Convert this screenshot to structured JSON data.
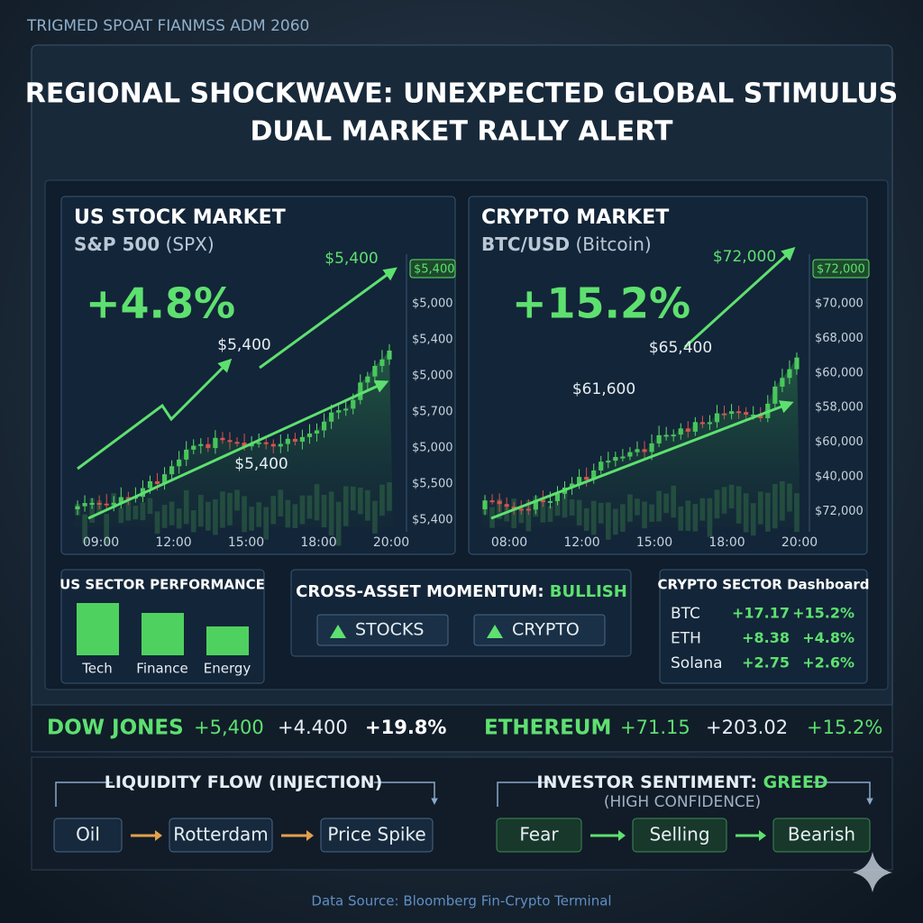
{
  "header": {
    "caption": "TRIGMED SPOAT FIANMSS ADM 2060",
    "title_lines": [
      "REGIONAL SHOCKWAVE: UNEXPECTED GLOBAL STIMULUS",
      "DUAL MARKET RALLY ALERT"
    ]
  },
  "panels": [
    {
      "title": "US STOCK MARKET",
      "subtitle_bold": "S&P 500",
      "subtitle": "(SPX)",
      "change": "+4.8%",
      "annotations": [
        "$5,400",
        "$5,400",
        "$5,400"
      ],
      "price_badge": "$5,400",
      "y_labels": [
        "$5,000",
        "$5,400",
        "$5,000",
        "$5,700",
        "$5,000",
        "$5,500",
        "$5,400"
      ],
      "x_labels": [
        "09:00",
        "12:00",
        "15:00",
        "18:00",
        "20:00"
      ]
    },
    {
      "title": "CRYPTO MARKET",
      "subtitle_bold": "BTC/USD",
      "subtitle": "(Bitcoin)",
      "change": "+15.2%",
      "annotations": [
        "$72,000",
        "$65,400",
        "$61,600"
      ],
      "price_badge": "$72,000",
      "y_labels": [
        "$70,000",
        "$68,000",
        "$60,000",
        "$58,000",
        "$60,000",
        "$40,000",
        "$72,000"
      ],
      "x_labels": [
        "08:00",
        "12:00",
        "15:00",
        "18:00",
        "20:00"
      ]
    }
  ],
  "us_sector": {
    "title": "US SECTOR PERFORMANCE",
    "categories": [
      "Tech",
      "Finance",
      "Energy"
    ],
    "values": [
      58,
      47,
      32
    ]
  },
  "momentum": {
    "title": "CROSS-ASSET MOMENTUM:",
    "status": "BULLISH",
    "buttons": [
      "STOCKS",
      "CRYPTO"
    ]
  },
  "crypto_sector": {
    "title": "CRYPTO SECTOR Dashboard",
    "rows": [
      [
        "BTC",
        "+17.17",
        "+15.2%"
      ],
      [
        "ETH",
        "+8.38",
        "+4.8%"
      ],
      [
        "Solana",
        "+2.75",
        "+2.6%"
      ]
    ]
  },
  "ticker": [
    {
      "name": "DOW JONES",
      "items": [
        "+5,400",
        "+4.400",
        "+19.8%"
      ]
    },
    {
      "name": "ETHEREUM",
      "items": [
        "+71.15",
        "+203.02",
        "+15.2%"
      ]
    }
  ],
  "flows": [
    {
      "title": "LIQUIDITY FLOW (INJECTION)",
      "steps": [
        "Oil",
        "Rotterdam",
        "Price Spike"
      ]
    },
    {
      "title": "INVESTOR SENTIMENT:",
      "status": "GREED",
      "subtitle": "(HIGH CONFIDENCE)",
      "steps": [
        "Fear",
        "Selling",
        "Bearish"
      ]
    }
  ],
  "footer": "Data Source: Bloomberg Fin-Crypto Terminal"
}
